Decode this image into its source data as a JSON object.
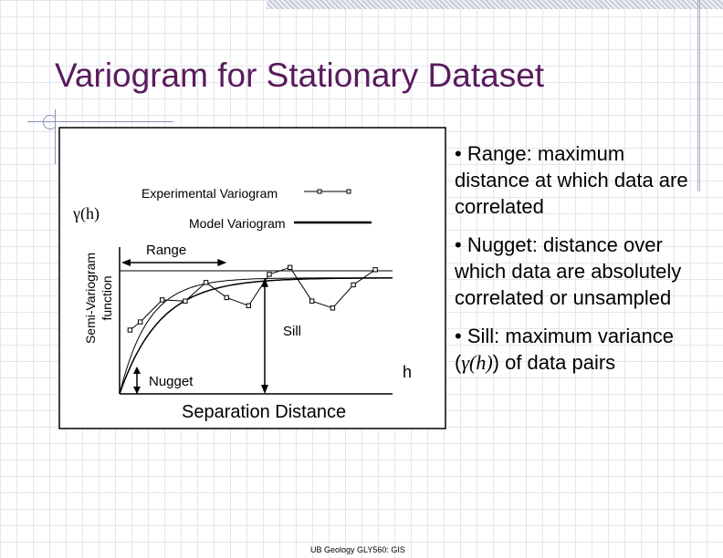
{
  "slide": {
    "title": "Variogram for Stationary Dataset",
    "footer": "UB Geology GLY560: GIS"
  },
  "bullets": [
    {
      "text": "• Range:  maximum distance at which data are correlated"
    },
    {
      "prefix": "• Nugget: distance over which data are absolutely correlated or unsampled"
    },
    {
      "prefix": "• Sill:  maximum variance (",
      "em": "γ(h)",
      "suffix": ") of data pairs"
    }
  ],
  "chart_data": {
    "type": "line",
    "ylabel_symbol": "γ(h)",
    "ylabel": "Semi-Variogram function",
    "xlabel": "Separation Distance",
    "x_symbol": "h",
    "series": [
      {
        "name": "Experimental Variogram",
        "marker": "square",
        "x": [
          0.9,
          1.8,
          3.7,
          5.7,
          7.5,
          9.3,
          11.2,
          13.0,
          14.8,
          16.7,
          18.5,
          20.3,
          22.2
        ],
        "y": [
          5.5,
          6.2,
          8.1,
          8.0,
          9.6,
          8.3,
          7.6,
          10.3,
          10.9,
          8.0,
          7.4,
          9.4,
          10.7
        ]
      },
      {
        "name": "Model Variogram",
        "model": "exponential",
        "nugget": 0,
        "sill": 10,
        "range_param": 3.5
      },
      {
        "name": "Model Variogram",
        "model": "exponential",
        "nugget": 0,
        "sill": 10,
        "range_param": 2.5
      }
    ],
    "xlim": [
      0,
      23.7
    ],
    "ylim": [
      0,
      13.2
    ],
    "annotations": {
      "range": {
        "label": "Range",
        "value": 9.3
      },
      "sill": {
        "label": "Sill",
        "value": 10.0
      },
      "nugget": {
        "label": "Nugget"
      }
    }
  }
}
